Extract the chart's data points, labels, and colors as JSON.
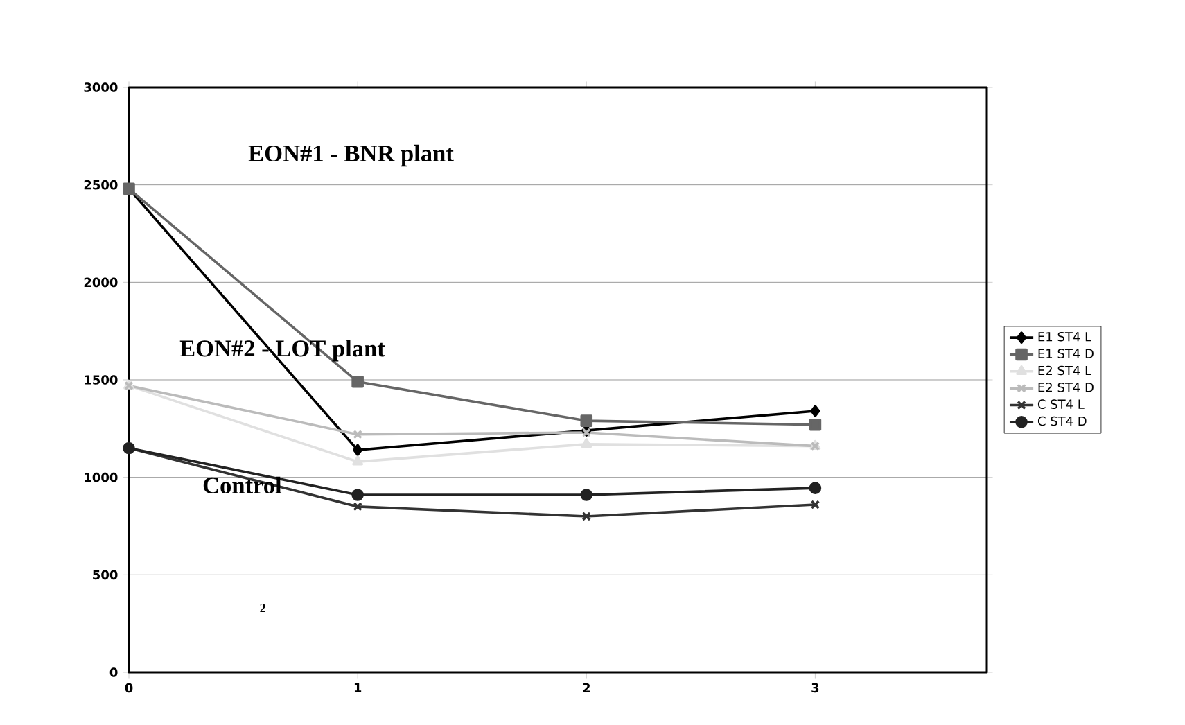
{
  "chart_data": {
    "type": "line",
    "x": [
      0,
      1,
      2,
      3
    ],
    "xlim": [
      0,
      3.75
    ],
    "ylim": [
      0,
      3000
    ],
    "xticks": [
      0,
      1,
      2,
      3
    ],
    "yticks": [
      0,
      500,
      1000,
      1500,
      2000,
      2500,
      3000
    ],
    "grid": "y",
    "legend": "right",
    "line_style": "solid",
    "annotations": [
      "EON#1 - BNR plant",
      "EON#2 - LOT plant",
      "Control",
      "2"
    ],
    "series": [
      {
        "name": "E1 ST4 L",
        "color": "#000000",
        "marker": "diamond",
        "values": [
          2480,
          1140,
          1240,
          1340
        ]
      },
      {
        "name": "E1 ST4 D",
        "color": "#666666",
        "marker": "square",
        "values": [
          2480,
          1490,
          1290,
          1270
        ]
      },
      {
        "name": "E2 ST4 L",
        "color": "#e0e0e0",
        "marker": "triangle",
        "values": [
          1470,
          1080,
          1170,
          1160
        ]
      },
      {
        "name": "E2 ST4 D",
        "color": "#bbbbbb",
        "marker": "cross",
        "values": [
          1470,
          1220,
          1230,
          1160
        ]
      },
      {
        "name": "C ST4 L",
        "color": "#333333",
        "marker": "cross",
        "values": [
          1150,
          850,
          800,
          860
        ]
      },
      {
        "name": "C ST4 D",
        "color": "#222222",
        "marker": "circle",
        "values": [
          1150,
          910,
          910,
          945
        ]
      }
    ]
  }
}
